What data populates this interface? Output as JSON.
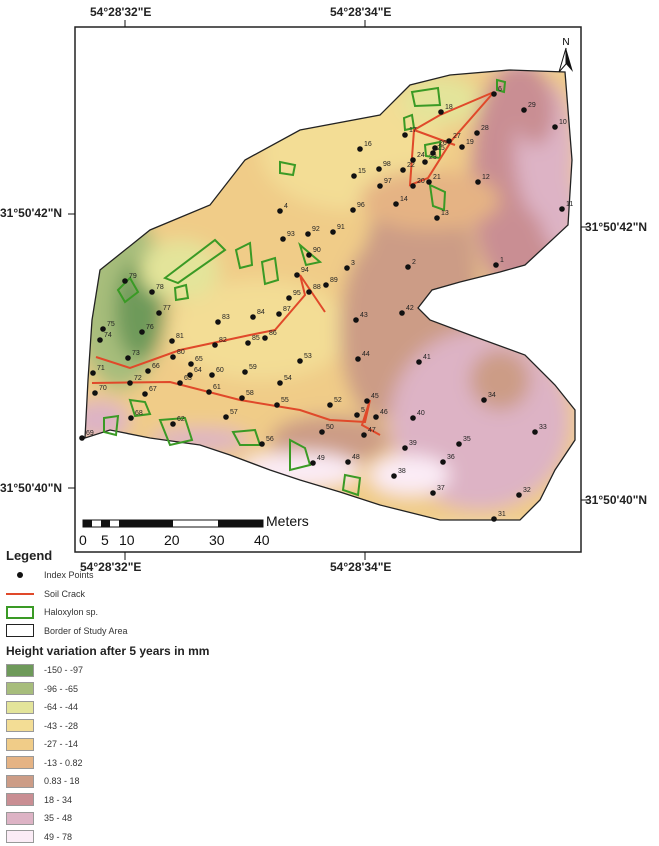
{
  "coords": {
    "top_lon": [
      "54°28'32\"E",
      "54°28'34\"E"
    ],
    "bottom_lon": [
      "54°28'32\"E",
      "54°28'34\"E"
    ],
    "left_lat": [
      "31°50'42\"N",
      "31°50'40\"N"
    ],
    "right_lat": [
      "31°50'42\"N",
      "31°50'40\"N"
    ]
  },
  "north_arrow": "N",
  "scale": {
    "unit": "Meters",
    "ticks": [
      "0",
      "5",
      "10",
      "20",
      "30",
      "40"
    ]
  },
  "legend": {
    "title": "Legend",
    "items": [
      {
        "label": "Index Points",
        "icon": "dot-icon"
      },
      {
        "label": "Soil Crack",
        "color": "#e0492a"
      },
      {
        "label": "Haloxylon sp.",
        "color": "#3a9a25"
      },
      {
        "label": "Border of Study Area",
        "color": "#222222"
      }
    ],
    "ramp_title": "Height variation after 5 years in mm",
    "classes": [
      {
        "label": "-150 - -97",
        "color": "#6e9a5a"
      },
      {
        "label": "-96 - -65",
        "color": "#a7bd7c"
      },
      {
        "label": "-64 - -44",
        "color": "#e3e49a"
      },
      {
        "label": "-43 - -28",
        "color": "#f3dd95"
      },
      {
        "label": "-27 - -14",
        "color": "#f0cc88"
      },
      {
        "label": "-13 - 0.82",
        "color": "#e5b384"
      },
      {
        "label": "0.83 - 18",
        "color": "#cc9c86"
      },
      {
        "label": "18 - 34",
        "color": "#c98e93"
      },
      {
        "label": "35 - 48",
        "color": "#ddb3c5"
      },
      {
        "label": "49 - 78",
        "color": "#fbecf6"
      }
    ]
  },
  "points": [
    "1",
    "2",
    "3",
    "4",
    "5",
    "6",
    "10",
    "11",
    "12",
    "13",
    "14",
    "15",
    "16",
    "17",
    "18",
    "19",
    "20",
    "21",
    "22",
    "23",
    "24",
    "25",
    "26",
    "27",
    "28",
    "29",
    "31",
    "32",
    "33",
    "34",
    "35",
    "36",
    "37",
    "38",
    "39",
    "40",
    "41",
    "42",
    "43",
    "44",
    "45",
    "46",
    "47",
    "48",
    "49",
    "50",
    "52",
    "53",
    "54",
    "55",
    "56",
    "57",
    "58",
    "59",
    "60",
    "61",
    "62",
    "63",
    "64",
    "65",
    "66",
    "67",
    "68",
    "69",
    "70",
    "71",
    "72",
    "73",
    "74",
    "75",
    "76",
    "77",
    "78",
    "79",
    "80",
    "81",
    "82",
    "83",
    "84",
    "85",
    "86",
    "87",
    "88",
    "89",
    "90",
    "91",
    "92",
    "93",
    "94",
    "95",
    "96",
    "97",
    "98"
  ]
}
